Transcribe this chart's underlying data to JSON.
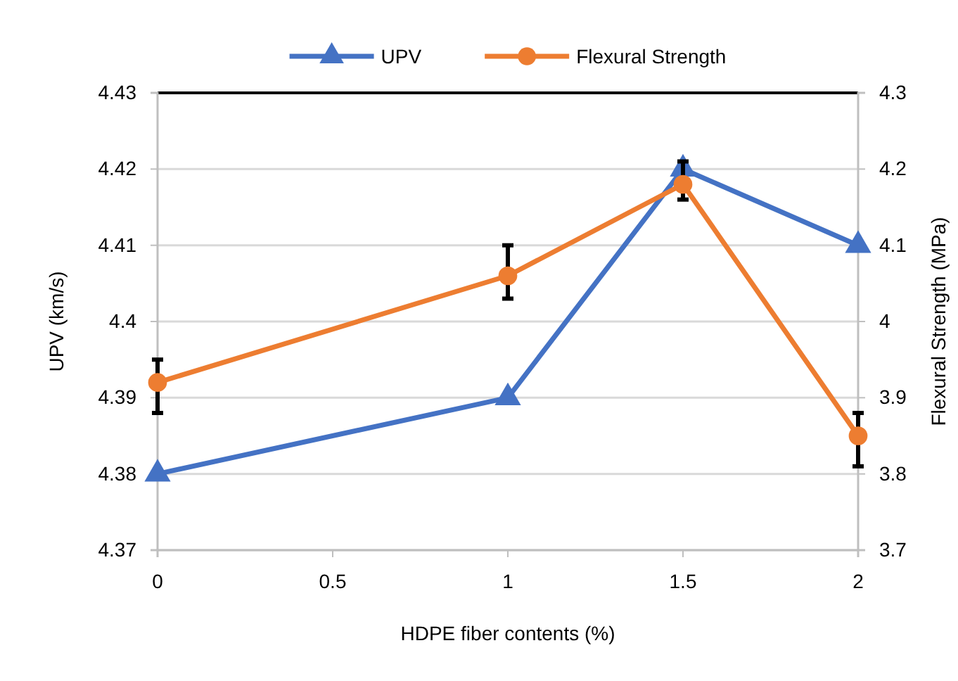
{
  "chart_data": {
    "type": "line",
    "xlabel": "HDPE fiber contents (%)",
    "ylabel": "UPV (km/s)",
    "y2label": "Flexural Strength (MPa)",
    "x": [
      0,
      1,
      1.5,
      2
    ],
    "xlim": [
      0,
      2
    ],
    "xticks": [
      0,
      0.5,
      1,
      1.5,
      2
    ],
    "ylim": [
      4.37,
      4.43
    ],
    "yticks": [
      4.37,
      4.38,
      4.39,
      4.4,
      4.41,
      4.42,
      4.43
    ],
    "y2lim": [
      3.7,
      4.3
    ],
    "y2ticks": [
      3.7,
      3.8,
      3.9,
      4,
      4.1,
      4.2,
      4.3
    ],
    "grid": "y",
    "legend": "top",
    "series": [
      {
        "name": "UPV",
        "color": "#4472c4",
        "marker": "triangle",
        "values": [
          4.38,
          4.39,
          4.42,
          4.41
        ]
      },
      {
        "name": "Flexural Strength",
        "color": "#ed7d31",
        "marker": "circle",
        "axis": "y2",
        "values": [
          3.92,
          4.06,
          4.18,
          3.85
        ],
        "errors": [
          [
            3.88,
            3.95
          ],
          [
            4.03,
            4.1
          ],
          [
            4.16,
            4.21
          ],
          [
            3.81,
            3.88
          ]
        ]
      }
    ]
  }
}
